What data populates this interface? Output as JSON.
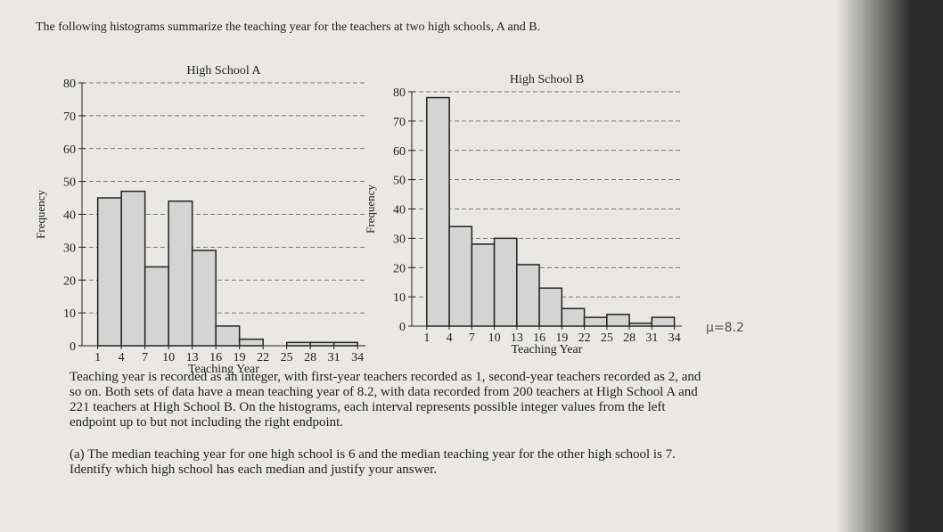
{
  "header": "The following histograms summarize the teaching year for the teachers at two high schools, A and B.",
  "chart_data": [
    {
      "type": "histogram",
      "title": "High School A",
      "x_label": "Teaching Year",
      "y_label": "Frequency",
      "bins": [
        1,
        4,
        7,
        10,
        13,
        16,
        19,
        22,
        25,
        28,
        31,
        34
      ],
      "values": [
        45,
        47,
        24,
        44,
        29,
        6,
        2,
        0,
        1,
        1,
        1
      ],
      "color": "#d4d4d4",
      "xlim": [
        -1,
        35
      ],
      "ylim": [
        0,
        80
      ],
      "yticks": [
        0,
        10,
        20,
        30,
        40,
        50,
        60,
        70,
        80
      ],
      "grid": true
    },
    {
      "type": "histogram",
      "title": "High School B",
      "x_label": "Teaching Year",
      "y_label": "Frequency",
      "bins": [
        1,
        4,
        7,
        10,
        13,
        16,
        19,
        22,
        25,
        28,
        31,
        34
      ],
      "values": [
        78,
        34,
        28,
        30,
        21,
        13,
        6,
        3,
        4,
        1,
        3
      ],
      "color": "#d4d4d4",
      "xlim": [
        -1,
        35
      ],
      "ylim": [
        0,
        80
      ],
      "yticks": [
        0,
        10,
        20,
        30,
        40,
        50,
        60,
        70,
        80
      ],
      "grid": true
    }
  ],
  "annotation": "μ=8.2",
  "paragraph": "Teaching year is recorded as an integer, with first-year teachers recorded as 1, second-year teachers recorded as 2, and so on. Both sets of data have a mean teaching year of 8.2, with data recorded from 200 teachers at High School A and 221 teachers at High School B. On the histograms, each interval represents possible integer values from the left endpoint up to but not including the right endpoint.",
  "question": "(a) The median teaching year for one high school is 6 and the median teaching year for the other high school is 7. Identify which high school has each median and justify your answer."
}
